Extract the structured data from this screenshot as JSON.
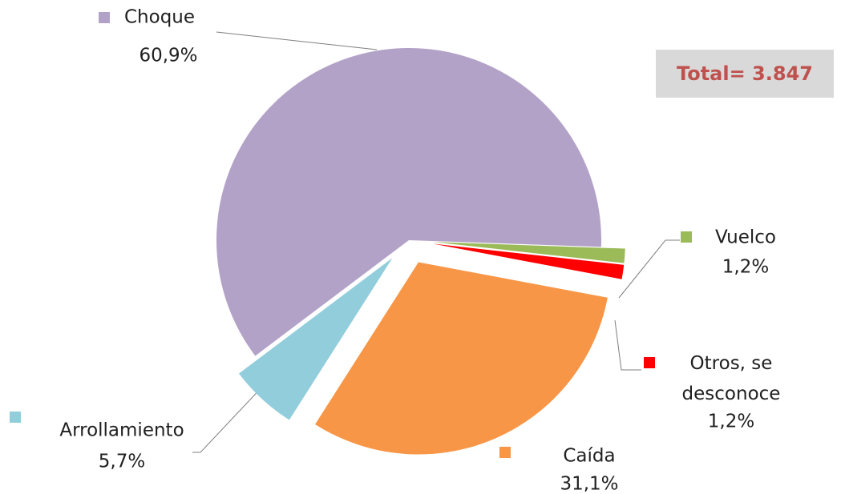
{
  "chart_data": {
    "type": "pie",
    "categories": [
      "Vuelco",
      "Otros, se desconoce",
      "Caída",
      "Arrollamiento",
      "Choque"
    ],
    "values": [
      1.2,
      1.2,
      31.1,
      5.7,
      60.9
    ],
    "value_labels": [
      "1,2%",
      "1,2%",
      "31,1%",
      "5,7%",
      "60,9%"
    ],
    "colors": [
      "#9bbb59",
      "#ff0000",
      "#f79646",
      "#92cddc",
      "#b3a2c7"
    ],
    "annotation": "Total= 3.847"
  }
}
